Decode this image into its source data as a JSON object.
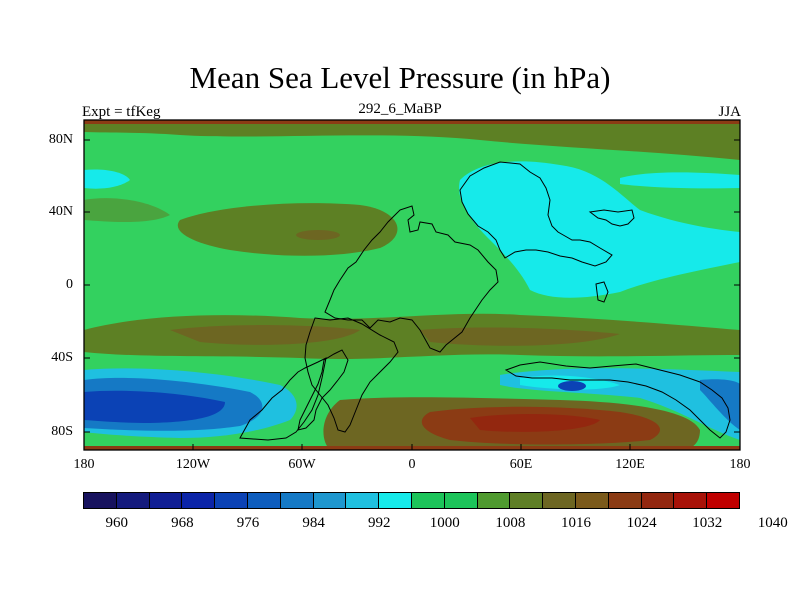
{
  "title": "Mean Sea Level Pressure (in hPa)",
  "left_label": "Expt = tfKeg",
  "center_label": "292_6_MaBP",
  "right_label": "JJA",
  "lat_ticks": [
    "80N",
    "40N",
    "0",
    "40S",
    "80S"
  ],
  "lon_ticks": [
    "180",
    "120W",
    "60W",
    "0",
    "60E",
    "120E",
    "180"
  ],
  "colorbar": {
    "colors": [
      "#17125e",
      "#141a7d",
      "#101e94",
      "#0b24a8",
      "#0b42b5",
      "#0d5dbe",
      "#1579c5",
      "#1e97cf",
      "#1fc0e0",
      "#16eaea",
      "#1cc45a",
      "#1cc45a",
      "#4f9a2f",
      "#5f7f26",
      "#6d6622",
      "#7b5a1b",
      "#8b3b14",
      "#93270f",
      "#a81208",
      "#c00000"
    ],
    "labels": [
      "960",
      "968",
      "976",
      "984",
      "992",
      "1000",
      "1008",
      "1016",
      "1024",
      "1032",
      "1040"
    ]
  },
  "field_colors": {
    "ocean_green": "#18c45a",
    "light_green": "#33d15f",
    "olive": "#5d8024",
    "dark_olive": "#6c6a23",
    "brown": "#7b5a1b",
    "cyan": "#16eaea",
    "light_blue": "#1fc0e0",
    "mid_blue": "#1579c5",
    "dark_blue": "#0b42b5",
    "red": "#93270f"
  }
}
